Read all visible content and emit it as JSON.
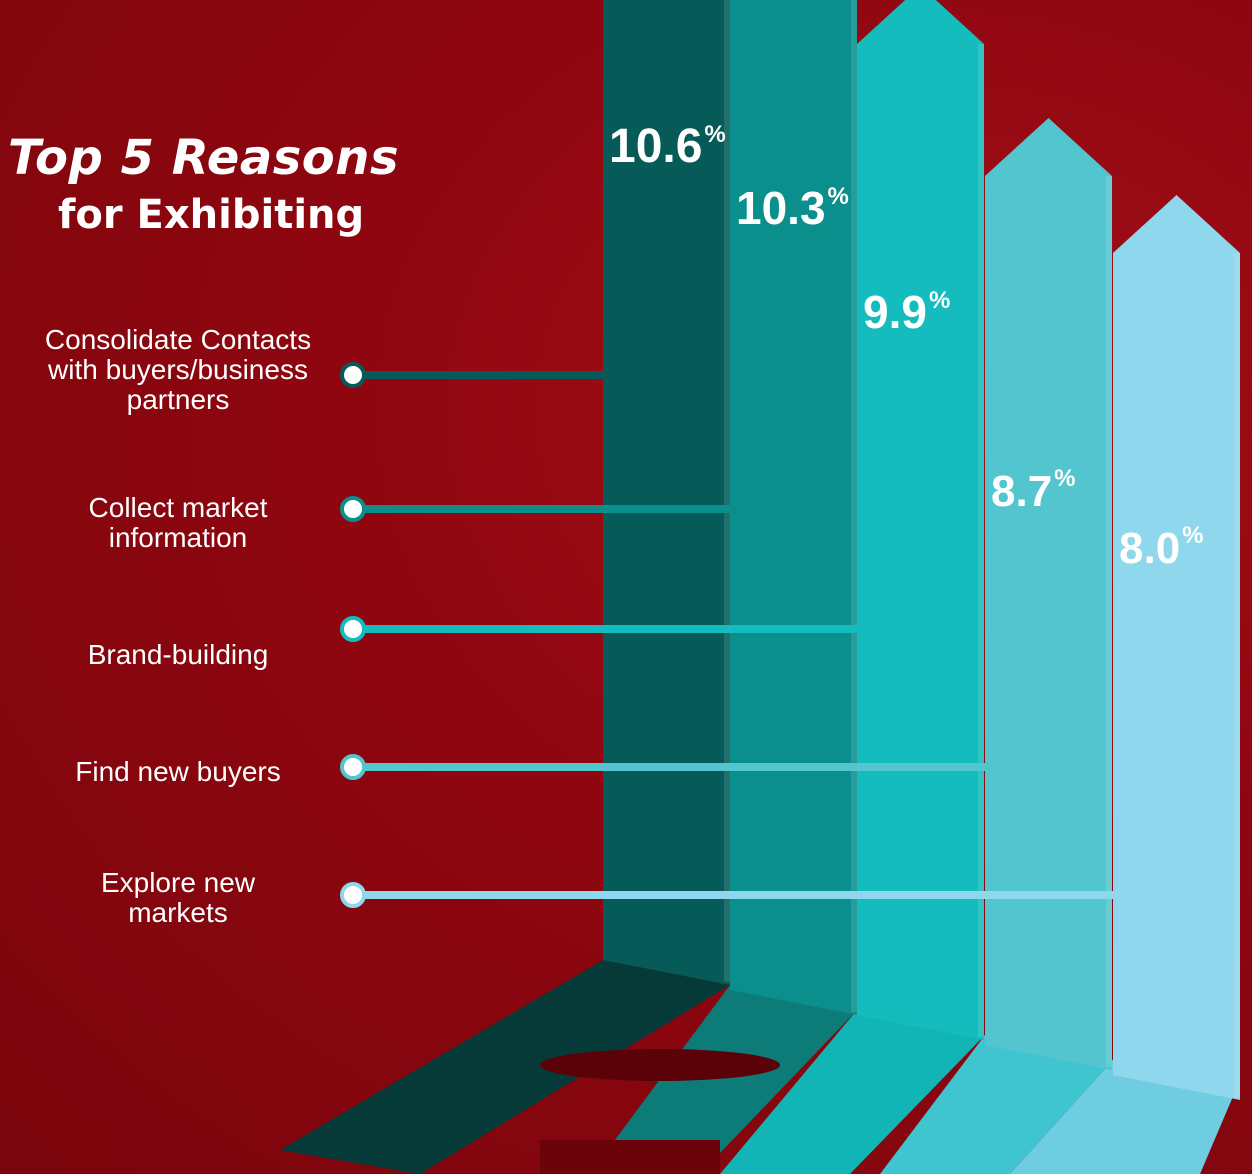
{
  "title": {
    "line1": "Top 5 Reasons",
    "line2": "for Exhibiting"
  },
  "chart_data": {
    "type": "bar",
    "title": "Top 5 Reasons for Exhibiting",
    "categories": [
      "Consolidate Contacts with buyers/business partners",
      "Collect market information",
      "Brand-building",
      "Find new buyers",
      "Explore new markets"
    ],
    "category_lines": [
      [
        "Consolidate Contacts",
        "with buyers/business",
        "partners"
      ],
      [
        "Collect market",
        "information"
      ],
      [
        "Brand-building"
      ],
      [
        "Find new buyers"
      ],
      [
        "Explore new",
        "markets"
      ]
    ],
    "values": [
      10.6,
      10.3,
      9.9,
      8.7,
      8.0
    ],
    "value_labels": [
      "10.6",
      "10.3",
      "9.9",
      "8.7",
      "8.0"
    ],
    "unit": "%",
    "colors": [
      "#065a58",
      "#0a8f8c",
      "#15bcbd",
      "#53c5cf",
      "#8fd7ec"
    ],
    "shadow_colors": [
      "#053a38",
      "#0d7b78",
      "#12b5b5",
      "#3fc5cf",
      "#6fcde2"
    ],
    "background": "#960810"
  }
}
